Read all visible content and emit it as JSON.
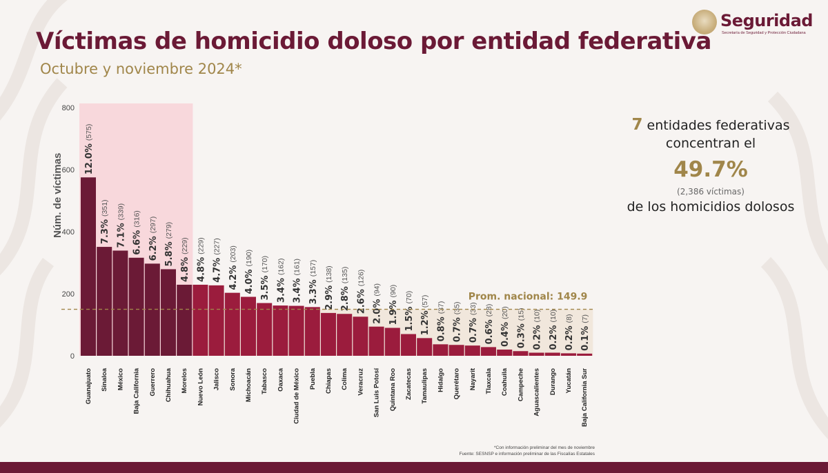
{
  "header": {
    "title": "Víctimas de homicidio doloso por entidad federativa",
    "subtitle": "Octubre y noviembre 2024*"
  },
  "logo": {
    "name": "Seguridad",
    "subtitle": "Secretaría de Seguridad y Protección Ciudadana"
  },
  "summary": {
    "count": "7",
    "line1_rest": "entidades federativas",
    "line2": "concentran el",
    "percent": "49.7%",
    "victims": "(2,386  víctimas)",
    "line4": "de los homicidios dolosos"
  },
  "footnote": {
    "line1": "*Con información preliminar del mes de noviembre",
    "line2": "Fuente: SESNSP e información preliminar de las Fiscalías Estatales"
  },
  "colors": {
    "top7": "#6b1a36",
    "rest": "#9b1c3d",
    "highlight": "#f8d8dc",
    "average_band": "#f1e7dc",
    "average_line": "#a0864a",
    "title": "#6b1a36",
    "accent": "#a0864a"
  },
  "chart_data": {
    "type": "bar",
    "ylabel": "Núm. de víctimas",
    "ylim": [
      0,
      800
    ],
    "yticks": [
      0,
      200,
      400,
      600,
      800
    ],
    "highlighted_count": 7,
    "average": {
      "label": "Prom. nacional: 149.9",
      "value": 149.9
    },
    "categories": [
      "Guanajuato",
      "Sinaloa",
      "México",
      "Baja California",
      "Guerrero",
      "Chihuahua",
      "Morelos",
      "Nuevo León",
      "Jalisco",
      "Sonora",
      "Michoacán",
      "Tabasco",
      "Oaxaca",
      "Ciudad de México",
      "Puebla",
      "Chiapas",
      "Colima",
      "Veracruz",
      "San Luis Potosí",
      "Quintana Roo",
      "Zacatecas",
      "Tamaulipas",
      "Hidalgo",
      "Querétaro",
      "Nayarit",
      "Tlaxcala",
      "Coahuila",
      "Campeche",
      "Aguascalientes",
      "Durango",
      "Yucatán",
      "Baja California Sur"
    ],
    "values": [
      575,
      351,
      339,
      316,
      297,
      279,
      229,
      229,
      227,
      203,
      190,
      170,
      162,
      161,
      157,
      138,
      135,
      126,
      94,
      90,
      70,
      57,
      37,
      35,
      33,
      28,
      20,
      15,
      10,
      10,
      8,
      7
    ],
    "percent_labels": [
      "12.0%",
      "7.3%",
      "7.1%",
      "6.6%",
      "6.2%",
      "5.8%",
      "4.8%",
      "4.8%",
      "4.7%",
      "4.2%",
      "4.0%",
      "3.5%",
      "3.4%",
      "3.4%",
      "3.3%",
      "2.9%",
      "2.8%",
      "2.6%",
      "2.0%",
      "1.9%",
      "1.5%",
      "1.2%",
      "0.8%",
      "0.7%",
      "0.7%",
      "0.6%",
      "0.4%",
      "0.3%",
      "0.2%",
      "0.2%",
      "0.2%",
      "0.1%"
    ],
    "count_labels": [
      "(575)",
      "(351)",
      "(339)",
      "(316)",
      "(297)",
      "(279)",
      "(229)",
      "(229)",
      "(227)",
      "(203)",
      "(190)",
      "(170)",
      "(162)",
      "(161)",
      "(157)",
      "(138)",
      "(135)",
      "(126)",
      "(94)",
      "(90)",
      "(70)",
      "(57)",
      "(37)",
      "(35)",
      "(33)",
      "(28)",
      "(20)",
      "(15)",
      "(10)",
      "(10)",
      "(8)",
      "(7)"
    ]
  }
}
